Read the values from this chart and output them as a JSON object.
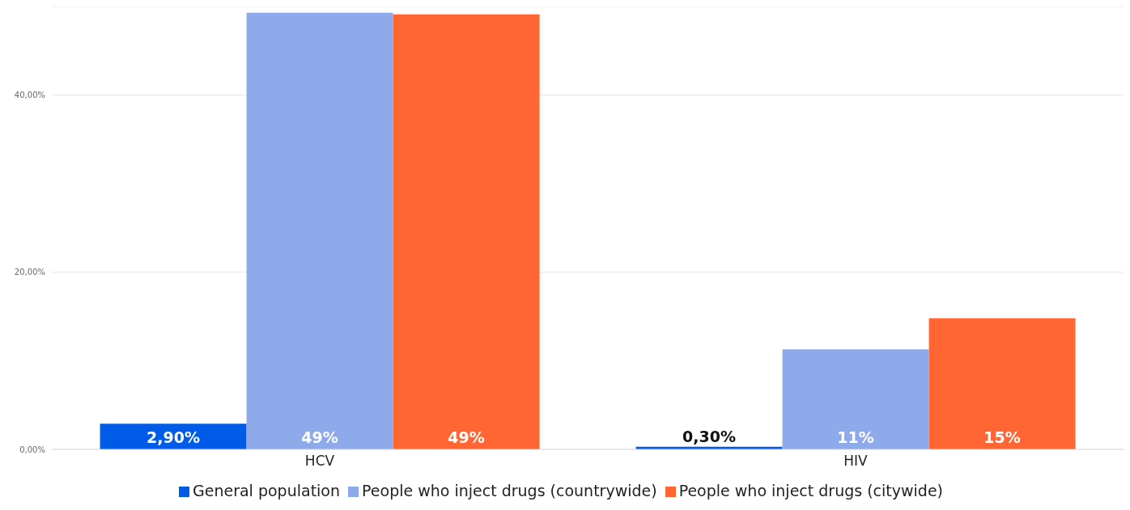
{
  "chart_data": {
    "type": "bar",
    "categories": [
      "HCV",
      "HIV"
    ],
    "series": [
      {
        "name": "General population",
        "color": "#005be8",
        "values": [
          2.9,
          0.3
        ],
        "value_labels": [
          "2,90%",
          "0,30%"
        ]
      },
      {
        "name": "People who inject drugs (countrywide)",
        "color": "#8eaaea",
        "values": [
          49.3,
          11.3
        ],
        "value_labels": [
          "49%",
          "11%"
        ]
      },
      {
        "name": "People who inject drugs (citywide)",
        "color": "#ff6633",
        "values": [
          49.1,
          14.8
        ],
        "value_labels": [
          "49%",
          "15%"
        ]
      }
    ],
    "ylim": [
      0,
      50
    ],
    "yticks": [
      {
        "value": 0,
        "label": "0,00%"
      },
      {
        "value": 20,
        "label": "20,00%"
      },
      {
        "value": 40,
        "label": "40,00%"
      }
    ],
    "grid": "y",
    "legend": "bottom"
  }
}
